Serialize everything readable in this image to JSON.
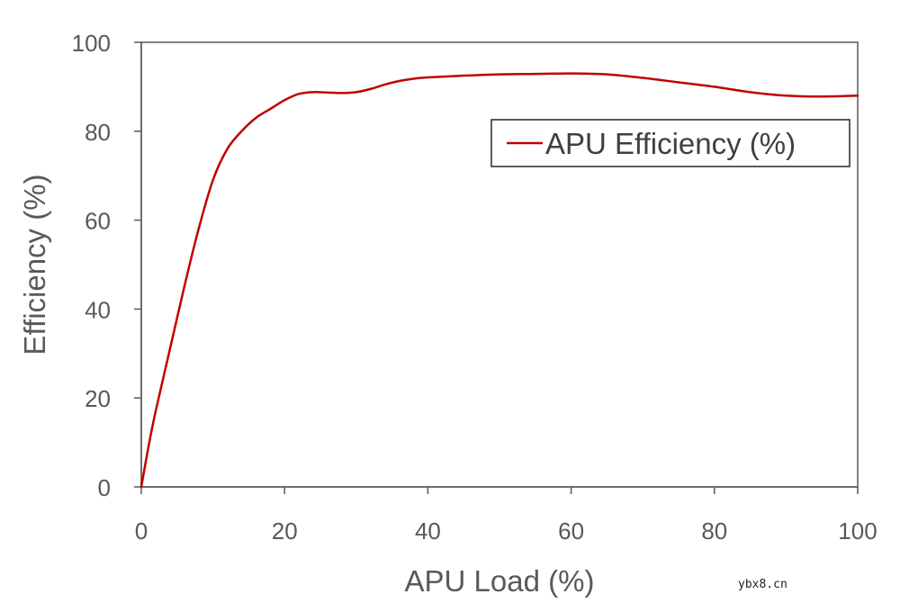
{
  "chart_data": {
    "type": "line",
    "title": "",
    "xlabel": "APU Load (%)",
    "ylabel": "Efficiency (%)",
    "xlim": [
      0,
      100
    ],
    "ylim": [
      0,
      100
    ],
    "xticks": [
      0,
      20,
      40,
      60,
      80,
      100
    ],
    "yticks": [
      0,
      20,
      40,
      60,
      80,
      100
    ],
    "grid": false,
    "legend_position": "top-right",
    "series": [
      {
        "name": "APU Efficiency (%)",
        "color": "#c00000",
        "x": [
          0,
          1,
          2,
          4,
          6,
          8,
          10,
          12,
          14,
          16,
          18,
          20,
          22,
          24,
          26,
          28,
          30,
          32,
          34,
          36,
          38,
          40,
          45,
          50,
          55,
          60,
          65,
          70,
          75,
          80,
          85,
          90,
          95,
          100
        ],
        "y": [
          0,
          9,
          17,
          31,
          45,
          58,
          69,
          76,
          80,
          83,
          85,
          87,
          88.4,
          88.8,
          88.7,
          88.6,
          88.8,
          89.5,
          90.5,
          91.3,
          91.8,
          92.1,
          92.5,
          92.8,
          92.9,
          93,
          92.8,
          92,
          91,
          90,
          88.8,
          88,
          87.8,
          88
        ]
      }
    ]
  },
  "watermark": "ybx8.cn",
  "colors": {
    "axis": "#595959",
    "tick_text": "#595959",
    "legend_border": "#262626"
  }
}
